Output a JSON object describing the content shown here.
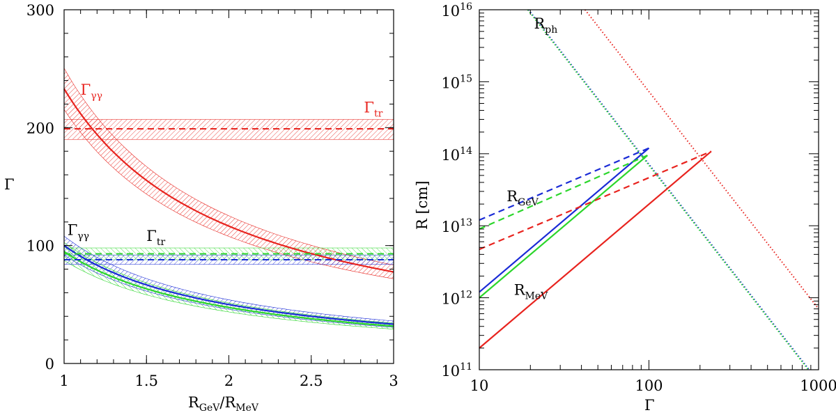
{
  "chart_data": [
    {
      "id": "left",
      "type": "line",
      "xlabel": {
        "main": "R",
        "sub1": "GeV",
        "sep": "/R",
        "sub2": "MeV"
      },
      "ylabel": "Γ",
      "xlim": [
        1,
        3
      ],
      "ylim": [
        0,
        300
      ],
      "xticks": [
        1,
        1.5,
        2,
        2.5,
        3
      ],
      "xtick_labels": [
        "1",
        "1.5",
        "2",
        "2.5",
        "3"
      ],
      "yticks": [
        0,
        100,
        200,
        300
      ],
      "ytick_labels": [
        "0",
        "100",
        "200",
        "300"
      ],
      "series": [
        {
          "name": "Γγγ red",
          "color": "#e8231e",
          "style": "solid",
          "model": "power",
          "y_at_1": 233,
          "exponent": -1.0,
          "band_frac": 0.075
        },
        {
          "name": "Γγγ blue",
          "color": "#1a2bd6",
          "style": "solid",
          "model": "power",
          "y_at_1": 100,
          "exponent": -1.0,
          "band_frac": 0.08
        },
        {
          "name": "Γγγ green",
          "color": "#2bd62b",
          "style": "solid",
          "model": "power",
          "y_at_1": 95,
          "exponent": -1.0,
          "band_frac": 0.08
        },
        {
          "name": "Γtr red",
          "color": "#e8231e",
          "style": "dashed",
          "model": "constant",
          "value": 199,
          "band": [
            190,
            207
          ]
        },
        {
          "name": "Γtr blue",
          "color": "#1a2bd6",
          "style": "dashed",
          "model": "constant",
          "value": 88,
          "band": [
            84,
            92
          ]
        },
        {
          "name": "Γtr green",
          "color": "#2bd62b",
          "style": "dashed",
          "model": "constant",
          "value": 93,
          "band": [
            88,
            98
          ]
        }
      ],
      "annotations": [
        {
          "main": "Γ",
          "sub": "γγ",
          "color": "#e8231e",
          "x": 1.1,
          "y": 228
        },
        {
          "main": "Γ",
          "sub": "tr",
          "color": "#e8231e",
          "x": 2.82,
          "y": 213
        },
        {
          "main": "Γ",
          "sub": "γγ",
          "color": "#000000",
          "x": 1.02,
          "y": 109
        },
        {
          "main": "Γ",
          "sub": "tr",
          "color": "#000000",
          "x": 1.5,
          "y": 104
        }
      ]
    },
    {
      "id": "right",
      "type": "line",
      "xscale": "log",
      "yscale": "log",
      "xlabel": "Γ",
      "ylabel": "R  [cm]",
      "xlim": [
        10,
        1000
      ],
      "ylim": [
        100000000000.0,
        1e+16
      ],
      "xtick_labels": [
        "10",
        "100",
        "1000"
      ],
      "xticks": [
        10,
        100,
        1000
      ],
      "ytick_labels": [
        {
          "base": "10",
          "exp": "11"
        },
        {
          "base": "10",
          "exp": "12"
        },
        {
          "base": "10",
          "exp": "13"
        },
        {
          "base": "10",
          "exp": "14"
        },
        {
          "base": "10",
          "exp": "15"
        },
        {
          "base": "10",
          "exp": "16"
        }
      ],
      "yticks": [
        100000000000.0,
        1000000000000.0,
        10000000000000.0,
        100000000000000.0,
        1000000000000000.0,
        1e+16
      ],
      "series": [
        {
          "name": "R_ph blue",
          "color": "#1a2bd6",
          "style": "dotted",
          "x": [
            19.5,
            880
          ],
          "y": [
            1e+16,
            100000000000.0
          ]
        },
        {
          "name": "R_ph green",
          "color": "#2bd62b",
          "style": "dotted",
          "x": [
            19.3,
            870
          ],
          "y": [
            1e+16,
            100000000000.0
          ]
        },
        {
          "name": "R_ph red",
          "color": "#e8231e",
          "style": "dotted",
          "x": [
            42,
            1000
          ],
          "y": [
            1e+16,
            700000000000.0
          ]
        },
        {
          "name": "R_MeV blue",
          "color": "#1a2bd6",
          "style": "solid",
          "x": [
            10,
            100
          ],
          "y": [
            1200000000000.0,
            120000000000000.0
          ]
        },
        {
          "name": "R_MeV green",
          "color": "#2bd62b",
          "style": "solid",
          "x": [
            10,
            98
          ],
          "y": [
            1000000000000.0,
            95000000000000.0
          ]
        },
        {
          "name": "R_MeV red",
          "color": "#e8231e",
          "style": "solid",
          "x": [
            10,
            233
          ],
          "y": [
            200000000000.0,
            108000000000000.0
          ]
        },
        {
          "name": "R_GeV blue",
          "color": "#1a2bd6",
          "style": "dashed",
          "x": [
            10,
            100
          ],
          "y": [
            12000000000000.0,
            120000000000000.0
          ]
        },
        {
          "name": "R_GeV green",
          "color": "#2bd62b",
          "style": "dashed",
          "x": [
            10,
            98
          ],
          "y": [
            9000000000000.0,
            95000000000000.0
          ]
        },
        {
          "name": "R_GeV red",
          "color": "#e8231e",
          "style": "dashed",
          "x": [
            10,
            233
          ],
          "y": [
            4700000000000.0,
            108000000000000.0
          ]
        }
      ],
      "annotations": [
        {
          "main": "R",
          "sub": "ph",
          "x": 21,
          "y": 5500000000000000.0
        },
        {
          "main": "R",
          "sub": "GeV",
          "x": 14.5,
          "y": 22000000000000.0
        },
        {
          "main": "R",
          "sub": "MeV",
          "x": 16,
          "y": 1100000000000.0
        }
      ]
    }
  ]
}
